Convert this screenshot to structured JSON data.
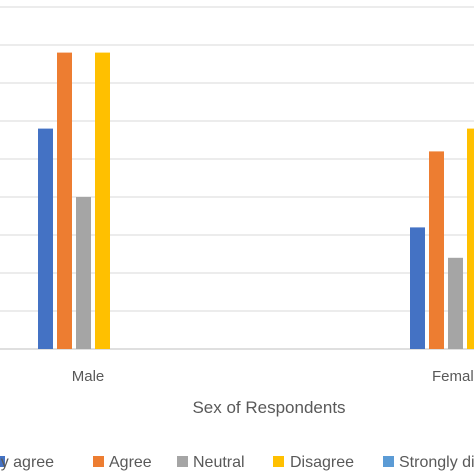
{
  "chart_data": {
    "type": "bar",
    "title": "",
    "xlabel": "Sex of Respondents",
    "ylabel": "",
    "categories": [
      "Male",
      "Female"
    ],
    "ylim": [
      0,
      9
    ],
    "grid": true,
    "legend_position": "bottom",
    "series": [
      {
        "name": "Strongly agree",
        "values": [
          5.8,
          3.2
        ],
        "color": "#4472C4"
      },
      {
        "name": "Agree",
        "values": [
          7.8,
          5.2
        ],
        "color": "#ED7D31"
      },
      {
        "name": "Neutral",
        "values": [
          4.0,
          2.4
        ],
        "color": "#A5A5A5"
      },
      {
        "name": "Disagree",
        "values": [
          7.8,
          5.8
        ],
        "color": "#FFC000"
      },
      {
        "name": "Strongly disagree",
        "values": [
          0,
          0
        ],
        "color": "#5B9BD5"
      }
    ]
  },
  "colors": {
    "gridline": "#D9D9D9",
    "axis": "#BFBFBF",
    "text": "#595959"
  }
}
